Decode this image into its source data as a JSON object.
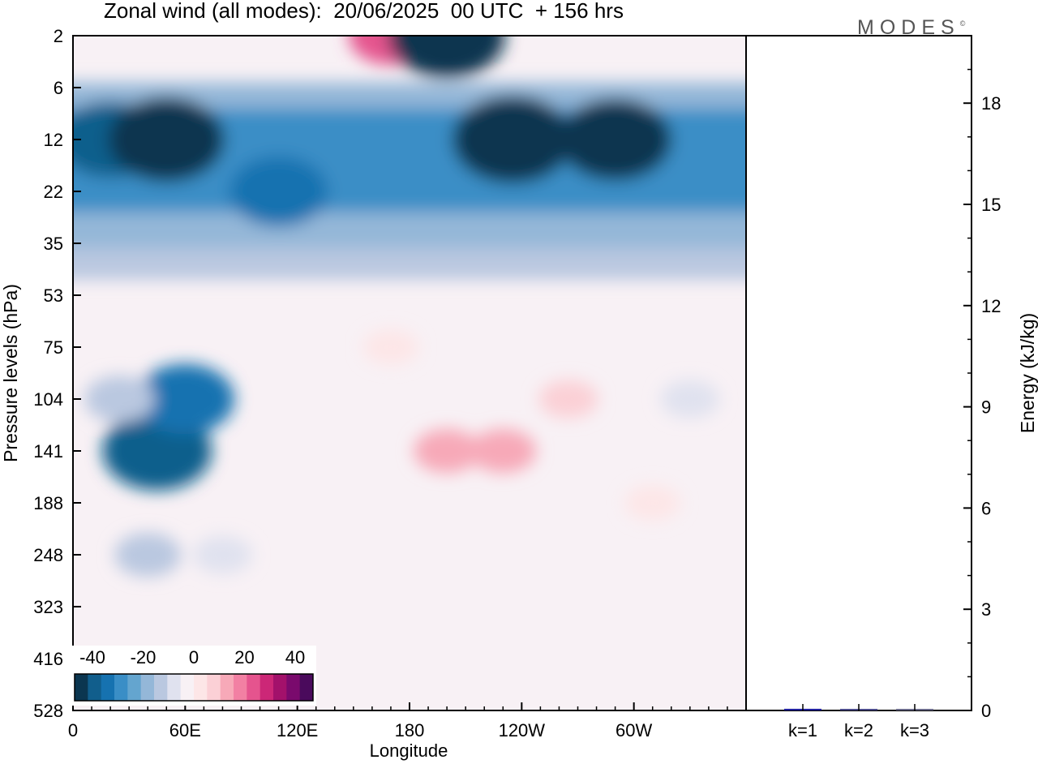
{
  "title": "Zonal wind (all modes):  20/06/2025  00 UTC  + 156 hrs",
  "brand": "MODES",
  "brand_mark": "©",
  "chart_data": [
    {
      "type": "heatmap",
      "title": "Zonal wind (all modes):  20/06/2025  00 UTC  + 156 hrs",
      "xlabel": "Longitude",
      "ylabel": "Pressure levels (hPa)",
      "x_tick_labels": [
        "0",
        "60E",
        "120E",
        "180",
        "120W",
        "60W"
      ],
      "x_tick_degrees": [
        0,
        60,
        120,
        180,
        240,
        300
      ],
      "xlim": [
        0,
        360
      ],
      "y_tick_labels": [
        "2",
        "6",
        "12",
        "22",
        "35",
        "53",
        "75",
        "104",
        "141",
        "188",
        "248",
        "323",
        "416",
        "528"
      ],
      "y_scale": "model levels (non-uniform, top = 2 hPa)",
      "colorbar": {
        "tick_labels": [
          "-40",
          "-20",
          "0",
          "20",
          "40"
        ],
        "range": [
          -40,
          40
        ],
        "colors": [
          "#0b3650",
          "#115e8c",
          "#1672b0",
          "#3a8ec6",
          "#64a5cf",
          "#94b7d8",
          "#bac8e0",
          "#e0e2ef",
          "#f8f1f5",
          "#fde6e7",
          "#fbd0d6",
          "#f7a9b8",
          "#f280a3",
          "#e5548e",
          "#cc2777",
          "#a3116b",
          "#7a0a6d",
          "#4a0a5c"
        ]
      },
      "features": [
        {
          "lon": 20,
          "level": "12",
          "value": -32
        },
        {
          "lon": 50,
          "level": "12",
          "value": -38
        },
        {
          "lon": 110,
          "level": "22",
          "value": -28
        },
        {
          "lon": 170,
          "level": "2",
          "value": 20
        },
        {
          "lon": 200,
          "level": "2",
          "value": -38
        },
        {
          "lon": 235,
          "level": "12",
          "value": -40
        },
        {
          "lon": 290,
          "level": "12",
          "value": -36
        },
        {
          "lon": 45,
          "level": "141",
          "value": -34
        },
        {
          "lon": 60,
          "level": "104",
          "value": -28
        },
        {
          "lon": 25,
          "level": "104",
          "value": -12
        },
        {
          "lon": 40,
          "level": "248",
          "value": -10
        },
        {
          "lon": 80,
          "level": "248",
          "value": -6
        },
        {
          "lon": 200,
          "level": "141",
          "value": 10
        },
        {
          "lon": 230,
          "level": "141",
          "value": 10
        },
        {
          "lon": 265,
          "level": "104",
          "value": 6
        },
        {
          "lon": 170,
          "level": "75",
          "value": 4
        },
        {
          "lon": 310,
          "level": "188",
          "value": 4
        },
        {
          "lon": 330,
          "level": "104",
          "value": -6
        }
      ]
    },
    {
      "type": "bar",
      "ylabel": "Energy (kJ/kg)",
      "categories": [
        "k=1",
        "k=2",
        "k=3"
      ],
      "values": [
        0.05,
        0.02,
        0.01
      ],
      "ylim": [
        0,
        20
      ],
      "y_ticks": [
        0,
        3,
        6,
        9,
        12,
        15,
        18
      ],
      "bar_colors": [
        "#1f1f9e",
        "#4a4a8a",
        "#6a6a8a"
      ]
    }
  ]
}
